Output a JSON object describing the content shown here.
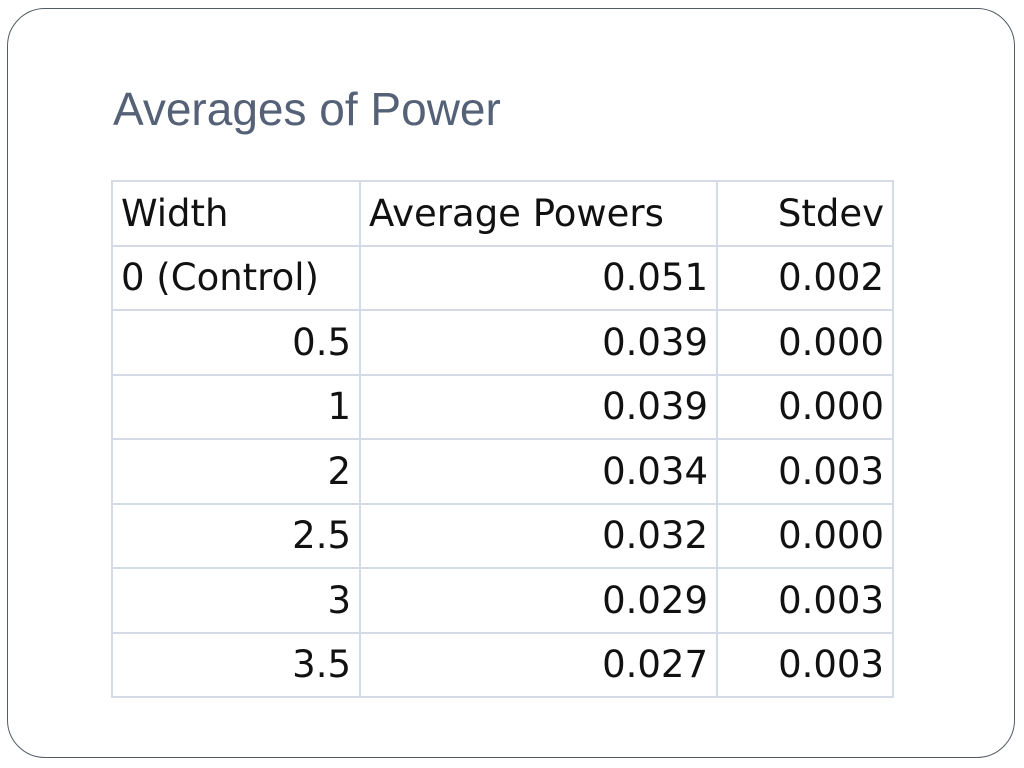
{
  "slide": {
    "title": "Averages of Power"
  },
  "table": {
    "headers": [
      "Width",
      "Average Powers",
      "Stdev"
    ],
    "rows": [
      [
        "0 (Control)",
        "0.051",
        "0.002"
      ],
      [
        "0.5",
        "0.039",
        "0.000"
      ],
      [
        "1",
        "0.039",
        "0.000"
      ],
      [
        "2",
        "0.034",
        "0.003"
      ],
      [
        "2.5",
        "0.032",
        "0.000"
      ],
      [
        "3",
        "0.029",
        "0.003"
      ],
      [
        "3.5",
        "0.027",
        "0.003"
      ]
    ]
  },
  "colors": {
    "title": "#546177",
    "grid": "#d4dbe6",
    "frame": "#555b63"
  }
}
